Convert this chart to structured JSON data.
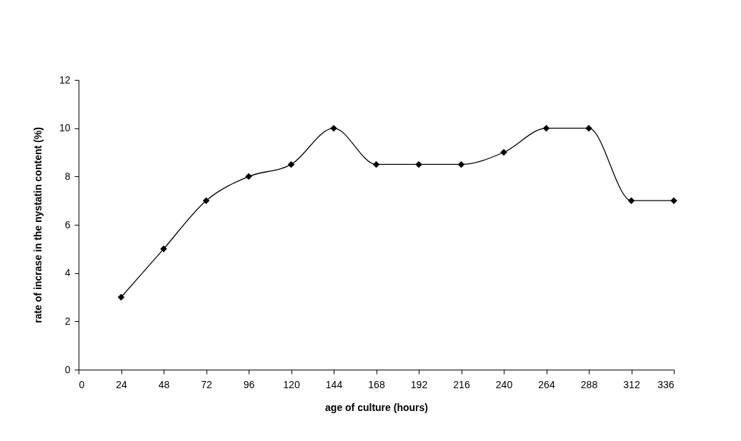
{
  "chart_data": {
    "type": "line",
    "xlabel": "age of culture (hours)",
    "ylabel": "rate of incrase in the nystatin content (%)",
    "x": [
      24,
      48,
      72,
      96,
      120,
      144,
      168,
      192,
      216,
      240,
      264,
      288,
      312,
      336
    ],
    "series": [
      {
        "color": "#000000",
        "values": [
          3,
          5,
          7,
          8,
          8.5,
          10,
          8.5,
          8.5,
          8.5,
          9,
          10,
          10,
          7,
          7
        ]
      }
    ],
    "xlim": [
      0,
      336
    ],
    "xticks": [
      0,
      24,
      48,
      72,
      96,
      120,
      144,
      168,
      192,
      216,
      240,
      264,
      288,
      312,
      336
    ],
    "ylim": [
      0,
      12
    ],
    "yticks": [
      0,
      2,
      4,
      6,
      8,
      10,
      12
    ],
    "marker": "diamond",
    "line_style": "solid",
    "grid": false,
    "legend": false
  }
}
